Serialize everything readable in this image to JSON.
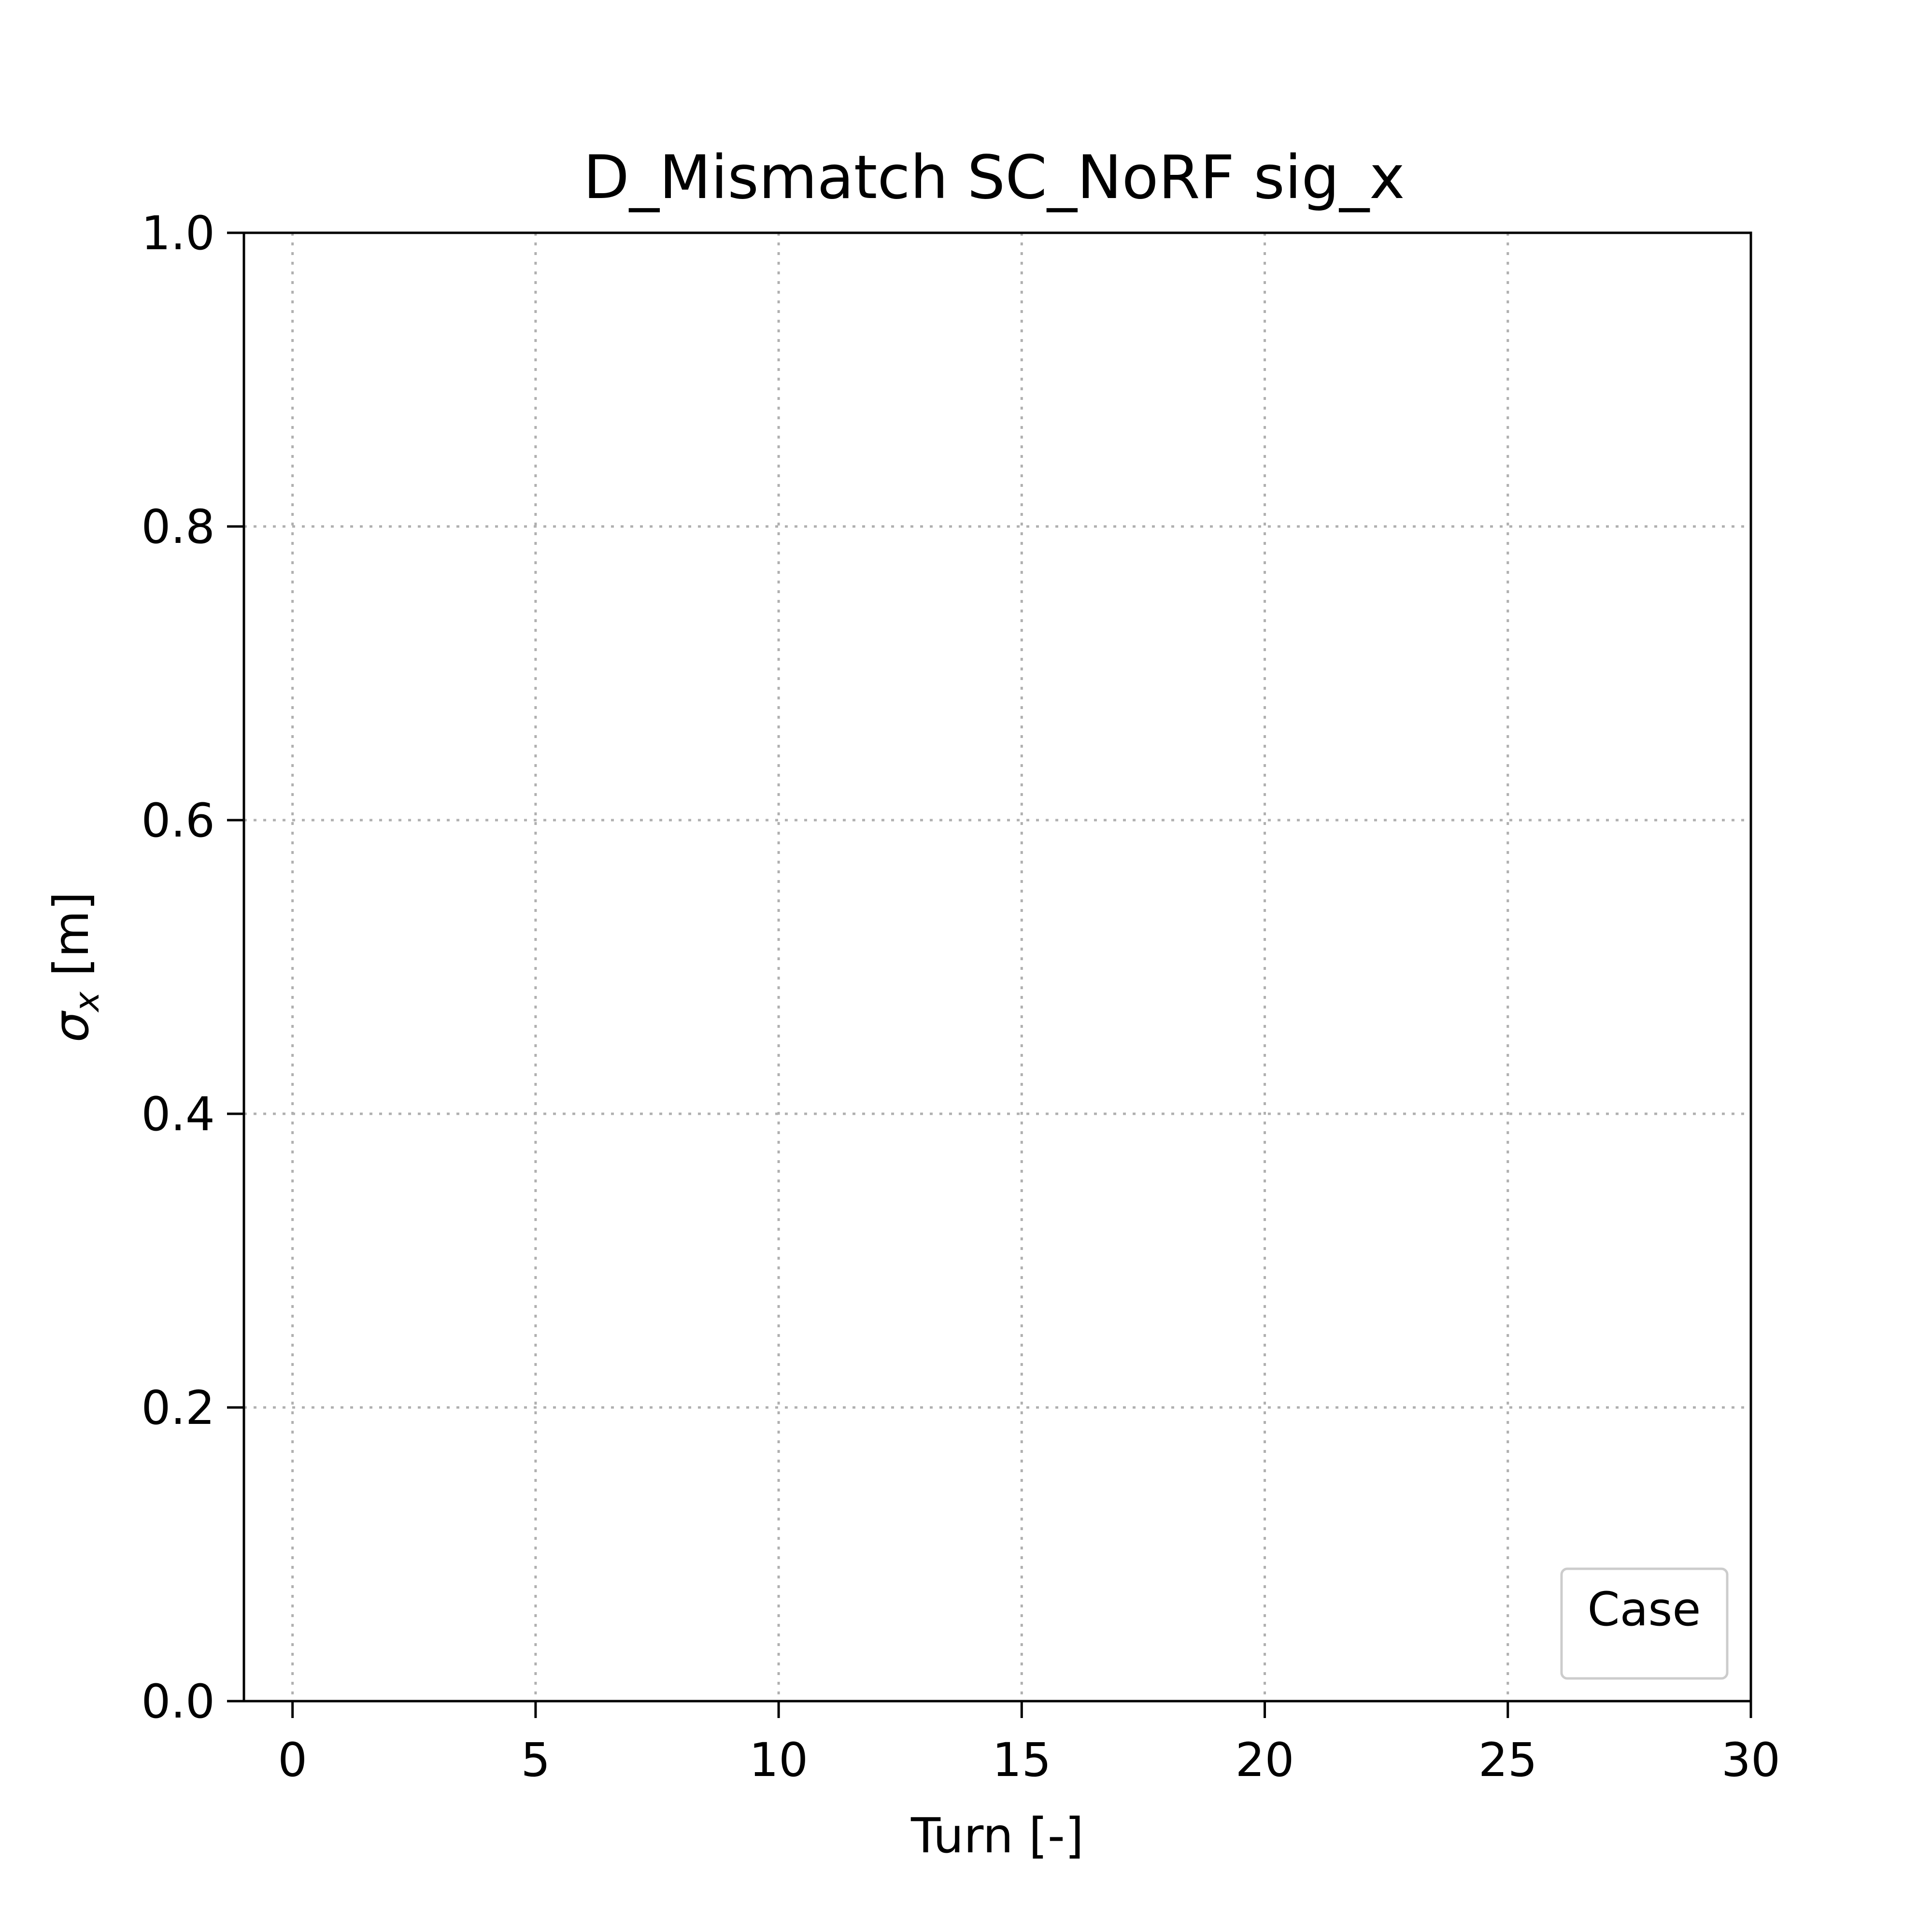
{
  "chart_data": {
    "type": "line",
    "title": "D_Mismatch SC_NoRF sig_x",
    "xlabel": "Turn [-]",
    "ylabel_symbol": "σ",
    "ylabel_subscript": "x",
    "ylabel_unit": " [m]",
    "xlim": [
      -1,
      30
    ],
    "ylim": [
      0.0,
      1.0
    ],
    "x_ticks": [
      0,
      5,
      10,
      15,
      20,
      25,
      30
    ],
    "x_tick_labels": [
      "0",
      "5",
      "10",
      "15",
      "20",
      "25",
      "30"
    ],
    "y_ticks": [
      0.0,
      0.2,
      0.4,
      0.6,
      0.8,
      1.0
    ],
    "y_tick_labels": [
      "0.0",
      "0.2",
      "0.4",
      "0.6",
      "0.8",
      "1.0"
    ],
    "grid": true,
    "legend": {
      "title": "Case",
      "placement": "lower-right",
      "entries": []
    },
    "series": []
  }
}
